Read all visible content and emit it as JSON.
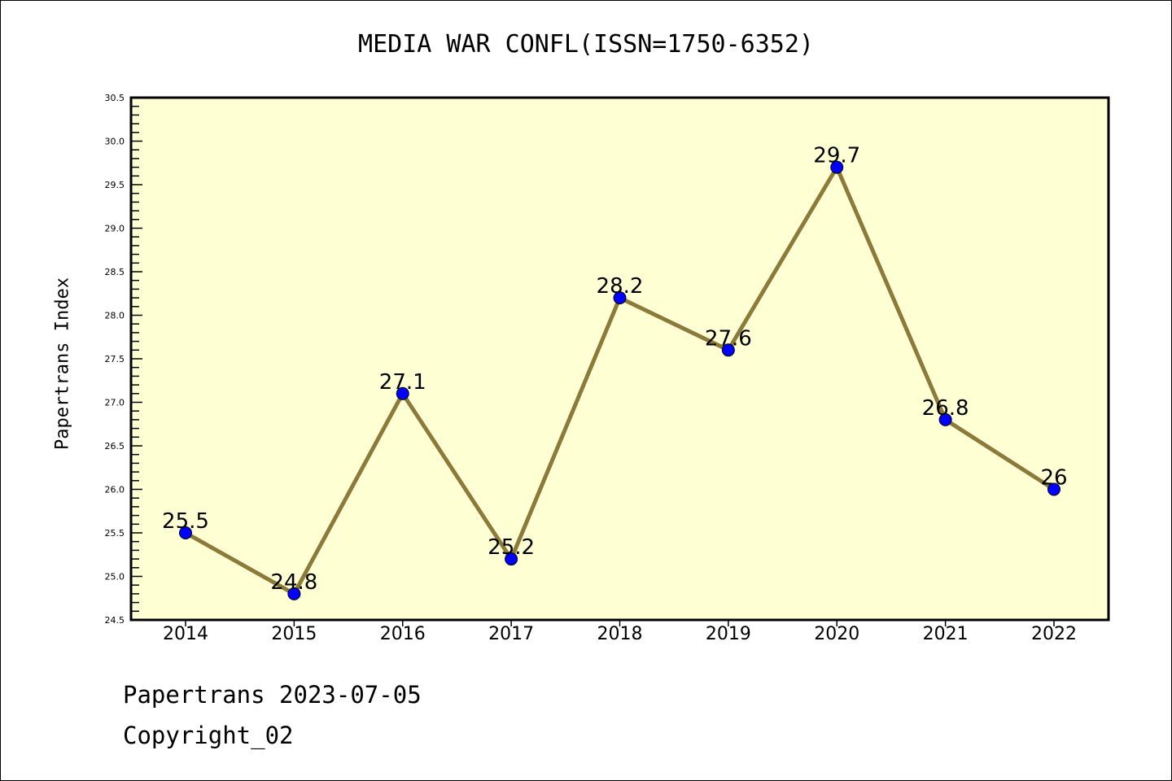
{
  "chart_data": {
    "type": "line",
    "title": "MEDIA WAR CONFL(ISSN=1750-6352)",
    "xlabel": "",
    "ylabel": "Papertrans Index",
    "categories": [
      "2014",
      "2015",
      "2016",
      "2017",
      "2018",
      "2019",
      "2020",
      "2021",
      "2022"
    ],
    "values": [
      25.5,
      24.8,
      27.1,
      25.2,
      28.2,
      27.6,
      29.7,
      26.8,
      26
    ],
    "data_labels": [
      "25.5",
      "24.8",
      "27.1",
      "25.2",
      "28.2",
      "27.6",
      "29.7",
      "26.8",
      "26"
    ],
    "ylim": [
      24.5,
      30.5
    ],
    "yticks": [
      "24.5",
      "25.0",
      "25.5",
      "26.0",
      "26.5",
      "27.0",
      "27.5",
      "28.0",
      "28.5",
      "29.0",
      "29.5",
      "30.0",
      "30.5"
    ],
    "grid": false,
    "legend": "none",
    "colors": {
      "line": "#8b7a3a",
      "marker": "#0000ff",
      "plot_bg": "#ffffd4"
    }
  },
  "footer": {
    "line1": "Papertrans 2023-07-05",
    "line2": "Copyright_02"
  }
}
